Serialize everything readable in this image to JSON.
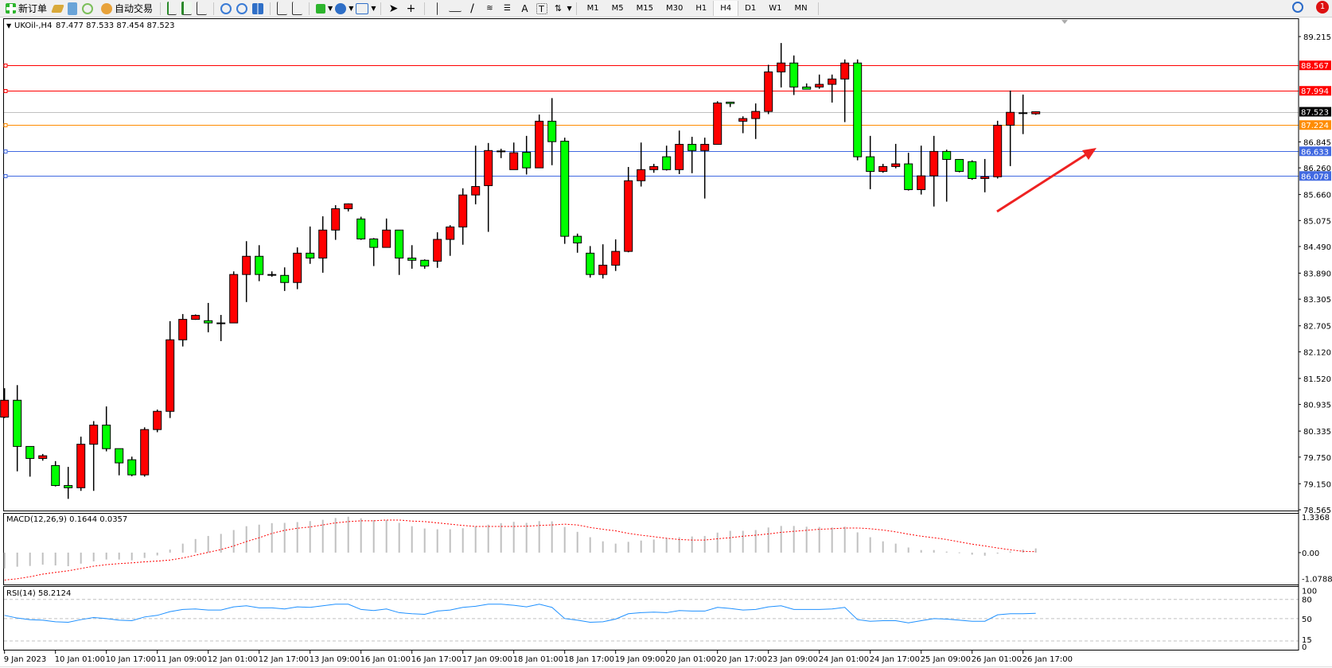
{
  "toolbar": {
    "new_order": "新订单",
    "auto_trading": "自动交易",
    "timeframes": [
      "M1",
      "M5",
      "M15",
      "M30",
      "H1",
      "H4",
      "D1",
      "W1",
      "MN"
    ],
    "active_timeframe": "H4",
    "notification_count": "1",
    "icons": [
      "new-order-icon",
      "gold-icon",
      "history-center-icon",
      "signal-icon",
      "auto-trading-icon",
      "bar-chart-icon",
      "candlestick-icon",
      "line-chart-icon",
      "zoom-in-icon",
      "zoom-out-icon",
      "tile-windows-icon",
      "chart-shift-icon",
      "autoscroll-icon",
      "indicators-icon",
      "periods-icon",
      "templates-icon",
      "cursor-icon",
      "crosshair-icon",
      "vertical-line-icon",
      "horizontal-line-icon",
      "trendline-icon",
      "fibonacci-icon",
      "text-icon",
      "text-label-icon",
      "arrows-icon"
    ]
  },
  "chart": {
    "symbol_header": "UKOil-,H4",
    "ohlc_header": "87.477 87.533 87.454 87.523"
  },
  "chart_data": {
    "type": "candlestick",
    "bull_color": "#ff0000",
    "bear_color": "#00ff00",
    "ylim": [
      78.565,
      89.215
    ],
    "price_ticks": [
      "89.215",
      "86.845",
      "86.260",
      "85.660",
      "85.075",
      "84.490",
      "83.890",
      "83.305",
      "82.705",
      "82.120",
      "81.520",
      "80.935",
      "80.335",
      "79.750",
      "79.150",
      "78.565"
    ],
    "hlines": [
      {
        "price": 88.567,
        "label": "88.567",
        "color": "#ff0000"
      },
      {
        "price": 87.994,
        "label": "87.994",
        "color": "#ff0000"
      },
      {
        "price": 87.523,
        "label": "87.523",
        "color": "#c0c0c0",
        "label_bg": "#000000"
      },
      {
        "price": 87.224,
        "label": "87.224",
        "color": "#ff8c00"
      },
      {
        "price": 86.633,
        "label": "86.633",
        "color": "#4169e1"
      },
      {
        "price": 86.078,
        "label": "86.078",
        "color": "#4169e1"
      }
    ],
    "ohlc": [
      [
        80.65,
        81.3,
        80.63,
        81.03
      ],
      [
        81.03,
        81.37,
        79.43,
        79.99
      ],
      [
        79.99,
        79.99,
        79.31,
        79.72
      ],
      [
        79.72,
        79.82,
        79.67,
        79.78
      ],
      [
        79.56,
        79.66,
        79.09,
        79.11
      ],
      [
        79.11,
        79.53,
        78.81,
        79.06
      ],
      [
        79.06,
        80.21,
        78.99,
        80.04
      ],
      [
        80.04,
        80.56,
        78.99,
        80.47
      ],
      [
        80.47,
        80.89,
        79.88,
        79.94
      ],
      [
        79.94,
        79.94,
        79.34,
        79.62
      ],
      [
        79.69,
        79.76,
        79.32,
        79.35
      ],
      [
        79.35,
        80.42,
        79.31,
        80.37
      ],
      [
        80.37,
        80.82,
        80.31,
        80.78
      ],
      [
        80.78,
        82.81,
        80.63,
        82.39
      ],
      [
        82.39,
        82.97,
        82.24,
        82.85
      ],
      [
        82.85,
        82.96,
        82.84,
        82.94
      ],
      [
        82.82,
        83.22,
        82.56,
        82.77
      ],
      [
        82.77,
        82.95,
        82.36,
        82.77
      ],
      [
        82.77,
        83.93,
        82.77,
        83.86
      ],
      [
        83.86,
        84.61,
        83.24,
        84.27
      ],
      [
        84.27,
        84.52,
        83.71,
        83.86
      ],
      [
        83.86,
        83.93,
        83.81,
        83.85
      ],
      [
        83.84,
        84.02,
        83.49,
        83.68
      ],
      [
        83.68,
        84.47,
        83.53,
        84.34
      ],
      [
        84.34,
        84.94,
        84.1,
        84.23
      ],
      [
        84.23,
        85.17,
        83.9,
        84.86
      ],
      [
        84.86,
        85.42,
        84.64,
        85.34
      ],
      [
        85.34,
        85.46,
        85.28,
        85.45
      ],
      [
        85.11,
        85.16,
        84.64,
        84.66
      ],
      [
        84.66,
        84.68,
        84.05,
        84.47
      ],
      [
        84.47,
        85.12,
        84.47,
        84.86
      ],
      [
        84.86,
        84.86,
        83.85,
        84.23
      ],
      [
        84.23,
        84.52,
        83.99,
        84.18
      ],
      [
        84.18,
        84.2,
        83.99,
        84.05
      ],
      [
        84.16,
        84.81,
        84.01,
        84.65
      ],
      [
        84.65,
        84.97,
        84.28,
        84.93
      ],
      [
        84.93,
        85.8,
        84.53,
        85.65
      ],
      [
        85.65,
        86.76,
        85.44,
        85.84
      ],
      [
        85.86,
        86.82,
        84.82,
        86.65
      ],
      [
        86.64,
        86.69,
        86.48,
        86.64
      ],
      [
        86.22,
        86.83,
        86.22,
        86.6
      ],
      [
        86.61,
        86.98,
        86.11,
        86.26
      ],
      [
        86.26,
        87.46,
        86.26,
        87.31
      ],
      [
        87.31,
        87.83,
        86.32,
        86.85
      ],
      [
        86.86,
        86.94,
        84.55,
        84.72
      ],
      [
        84.72,
        84.78,
        84.35,
        84.57
      ],
      [
        84.34,
        84.5,
        83.79,
        83.86
      ],
      [
        83.86,
        84.54,
        83.77,
        84.07
      ],
      [
        84.07,
        84.65,
        83.94,
        84.38
      ],
      [
        84.38,
        86.28,
        84.36,
        85.97
      ],
      [
        85.97,
        86.83,
        85.84,
        86.22
      ],
      [
        86.22,
        86.35,
        86.15,
        86.29
      ],
      [
        86.51,
        86.76,
        86.2,
        86.22
      ],
      [
        86.22,
        87.1,
        86.12,
        86.79
      ],
      [
        86.79,
        86.96,
        86.14,
        86.65
      ],
      [
        86.65,
        86.94,
        85.57,
        86.79
      ],
      [
        86.79,
        87.76,
        86.79,
        87.72
      ],
      [
        87.74,
        87.74,
        87.63,
        87.71
      ],
      [
        87.31,
        87.42,
        87.04,
        87.37
      ],
      [
        87.37,
        87.71,
        86.91,
        87.53
      ],
      [
        87.53,
        88.58,
        87.47,
        88.42
      ],
      [
        88.42,
        89.07,
        88.07,
        88.62
      ],
      [
        88.62,
        88.79,
        87.9,
        88.08
      ],
      [
        88.08,
        88.16,
        88.03,
        88.03
      ],
      [
        88.08,
        88.36,
        88.04,
        88.14
      ],
      [
        88.14,
        88.36,
        87.73,
        88.26
      ],
      [
        88.26,
        88.7,
        87.29,
        88.62
      ],
      [
        88.62,
        88.7,
        86.43,
        86.51
      ],
      [
        86.51,
        86.98,
        85.78,
        86.18
      ],
      [
        86.18,
        86.35,
        86.15,
        86.29
      ],
      [
        86.29,
        86.8,
        86.25,
        86.35
      ],
      [
        86.35,
        86.6,
        85.75,
        85.77
      ],
      [
        85.77,
        86.76,
        85.66,
        86.08
      ],
      [
        86.08,
        86.98,
        85.39,
        86.63
      ],
      [
        86.63,
        86.67,
        85.5,
        86.45
      ],
      [
        86.45,
        86.45,
        86.16,
        86.18
      ],
      [
        86.4,
        86.43,
        85.99,
        86.02
      ],
      [
        86.02,
        86.46,
        85.71,
        86.06
      ],
      [
        86.06,
        87.32,
        86.02,
        87.22
      ],
      [
        87.22,
        88.0,
        86.3,
        87.51
      ],
      [
        87.5,
        87.91,
        87.02,
        87.5
      ],
      [
        87.477,
        87.533,
        87.454,
        87.523
      ]
    ],
    "time_labels": [
      "9 Jan 2023",
      "10 Jan 01:00",
      "10 Jan 17:00",
      "11 Jan 09:00",
      "12 Jan 01:00",
      "12 Jan 17:00",
      "13 Jan 09:00",
      "16 Jan 01:00",
      "16 Jan 17:00",
      "17 Jan 09:00",
      "18 Jan 01:00",
      "18 Jan 17:00",
      "19 Jan 09:00",
      "20 Jan 01:00",
      "20 Jan 17:00",
      "23 Jan 09:00",
      "24 Jan 01:00",
      "24 Jan 17:00",
      "25 Jan 09:00",
      "26 Jan 01:00",
      "26 Jan 17:00"
    ],
    "annotation_arrow_color": "#ee2222",
    "macd": {
      "label": "MACD(12,26,9) 0.1644 0.0357",
      "axis_labels": [
        "1.3368",
        "0.00",
        "-1.0788"
      ],
      "ylim": [
        -1.0788,
        1.3368
      ],
      "hist_color": "#c0c0c0",
      "signal_color": "#ff0000",
      "histogram": [
        -0.62,
        -0.55,
        -0.52,
        -0.47,
        -0.5,
        -0.53,
        -0.43,
        -0.34,
        -0.27,
        -0.27,
        -0.3,
        -0.21,
        -0.11,
        0.12,
        0.35,
        0.53,
        0.65,
        0.73,
        0.88,
        1.03,
        1.09,
        1.15,
        1.16,
        1.19,
        1.23,
        1.28,
        1.35,
        1.4,
        1.34,
        1.27,
        1.27,
        1.16,
        1.03,
        0.94,
        0.91,
        0.91,
        0.95,
        1.02,
        1.09,
        1.15,
        1.2,
        1.16,
        1.23,
        1.22,
        1.0,
        0.81,
        0.6,
        0.44,
        0.35,
        0.42,
        0.47,
        0.51,
        0.57,
        0.6,
        0.63,
        0.65,
        0.78,
        0.85,
        0.85,
        0.88,
        0.98,
        1.04,
        1.04,
        1.01,
        1.0,
        0.98,
        1.01,
        0.79,
        0.6,
        0.44,
        0.35,
        0.2,
        0.1,
        0.1,
        0.04,
        0.01,
        -0.08,
        -0.12,
        -0.04,
        0.05,
        0.12,
        0.1644
      ],
      "signal": [
        -1.07,
        -1.02,
        -0.94,
        -0.84,
        -0.77,
        -0.71,
        -0.62,
        -0.53,
        -0.47,
        -0.43,
        -0.4,
        -0.36,
        -0.33,
        -0.29,
        -0.21,
        -0.1,
        0.01,
        0.12,
        0.26,
        0.43,
        0.58,
        0.75,
        0.87,
        0.95,
        1.0,
        1.08,
        1.16,
        1.21,
        1.24,
        1.24,
        1.27,
        1.27,
        1.23,
        1.21,
        1.16,
        1.11,
        1.06,
        1.02,
        1.02,
        1.02,
        1.02,
        1.03,
        1.06,
        1.08,
        1.11,
        1.08,
        0.98,
        0.91,
        0.85,
        0.75,
        0.68,
        0.62,
        0.56,
        0.51,
        0.49,
        0.49,
        0.54,
        0.58,
        0.64,
        0.68,
        0.73,
        0.79,
        0.83,
        0.87,
        0.91,
        0.93,
        0.96,
        0.96,
        0.93,
        0.88,
        0.81,
        0.72,
        0.64,
        0.58,
        0.51,
        0.42,
        0.33,
        0.26,
        0.18,
        0.11,
        0.05,
        0.0357
      ]
    },
    "rsi": {
      "label": "RSI(14) 58.2124",
      "axis_labels": [
        "100",
        "80",
        "50",
        "15",
        "0"
      ],
      "levels": [
        80,
        50,
        15
      ],
      "ylim": [
        0,
        100
      ],
      "color": "#1e90ff",
      "values": [
        55.0,
        50.8,
        48.3,
        47.5,
        45.0,
        44.2,
        48.3,
        51.7,
        50.0,
        47.5,
        46.7,
        52.5,
        55.0,
        60.8,
        64.2,
        65.0,
        63.3,
        63.3,
        68.3,
        70.0,
        66.7,
        66.7,
        65.0,
        68.3,
        67.5,
        70.0,
        72.5,
        72.5,
        64.2,
        62.5,
        65.0,
        59.2,
        57.5,
        56.7,
        61.7,
        63.3,
        67.5,
        69.2,
        72.5,
        72.5,
        70.8,
        68.3,
        72.5,
        67.5,
        50.0,
        47.5,
        44.2,
        45.0,
        49.2,
        57.5,
        59.2,
        60.0,
        59.2,
        62.5,
        61.7,
        61.7,
        67.5,
        65.8,
        63.3,
        64.2,
        68.3,
        70.0,
        64.2,
        64.2,
        64.2,
        65.0,
        67.5,
        48.3,
        45.8,
        46.7,
        46.7,
        43.3,
        46.7,
        50.0,
        49.2,
        47.5,
        45.8,
        45.8,
        55.8,
        57.5,
        57.5,
        58.2124
      ]
    }
  }
}
